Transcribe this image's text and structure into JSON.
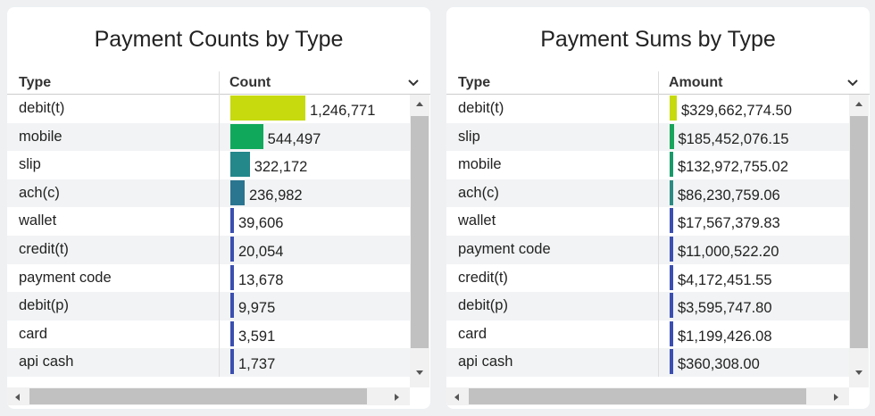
{
  "panels": [
    {
      "title": "Payment Counts by Type",
      "columns": [
        "Type",
        "Count"
      ],
      "rows": [
        {
          "type": "debit(t)",
          "amount": {
            "value": 1246771,
            "label": "1,246,771"
          },
          "color": "#c6da0d"
        },
        {
          "type": "mobile",
          "amount": {
            "value": 544497,
            "label": "544,497"
          },
          "color": "#10a95b"
        },
        {
          "type": "slip",
          "amount": {
            "value": 322172,
            "label": "322,172"
          },
          "color": "#24878a"
        },
        {
          "type": "ach(c)",
          "amount": {
            "value": 236982,
            "label": "236,982"
          },
          "color": "#2a7590"
        },
        {
          "type": "wallet",
          "amount": {
            "value": 39606,
            "label": "39,606"
          },
          "color": "#3b4fb0"
        },
        {
          "type": "credit(t)",
          "amount": {
            "value": 20054,
            "label": "20,054"
          },
          "color": "#3b4fb0"
        },
        {
          "type": "payment code",
          "amount": {
            "value": 13678,
            "label": "13,678"
          },
          "color": "#3b4fb0"
        },
        {
          "type": "debit(p)",
          "amount": {
            "value": 9975,
            "label": "9,975"
          },
          "color": "#3b4fb0"
        },
        {
          "type": "card",
          "amount": {
            "value": 3591,
            "label": "3,591"
          },
          "color": "#3b4fb0"
        },
        {
          "type": "api cash",
          "amount": {
            "value": 1737,
            "label": "1,737"
          },
          "color": "#3b4fb0"
        }
      ]
    },
    {
      "title": "Payment Sums by Type",
      "columns": [
        "Type",
        "Amount"
      ],
      "rows": [
        {
          "type": "debit(t)",
          "amount": {
            "value": 329662774.5,
            "label": "$329,662,774.50"
          },
          "color": "#c6da0d"
        },
        {
          "type": "slip",
          "amount": {
            "value": 185452076.15,
            "label": "$185,452,076.15"
          },
          "color": "#1aa35b"
        },
        {
          "type": "mobile",
          "amount": {
            "value": 132972755.02,
            "label": "$132,972,755.02"
          },
          "color": "#18996a"
        },
        {
          "type": "ach(c)",
          "amount": {
            "value": 86230759.06,
            "label": "$86,230,759.06"
          },
          "color": "#2a8a82"
        },
        {
          "type": "wallet",
          "amount": {
            "value": 17567379.83,
            "label": "$17,567,379.83"
          },
          "color": "#3b4fb0"
        },
        {
          "type": "payment code",
          "amount": {
            "value": 11000522.2,
            "label": "$11,000,522.20"
          },
          "color": "#3b4fb0"
        },
        {
          "type": "credit(t)",
          "amount": {
            "value": 4172451.55,
            "label": "$4,172,451.55"
          },
          "color": "#3b4fb0"
        },
        {
          "type": "debit(p)",
          "amount": {
            "value": 3595747.8,
            "label": "$3,595,747.80"
          },
          "color": "#3b4fb0"
        },
        {
          "type": "card",
          "amount": {
            "value": 1199426.08,
            "label": "$1,199,426.08"
          },
          "color": "#3b4fb0"
        },
        {
          "type": "api cash",
          "amount": {
            "value": 360308.0,
            "label": "$360,308.00"
          },
          "color": "#3b4fb0"
        }
      ]
    }
  ]
}
